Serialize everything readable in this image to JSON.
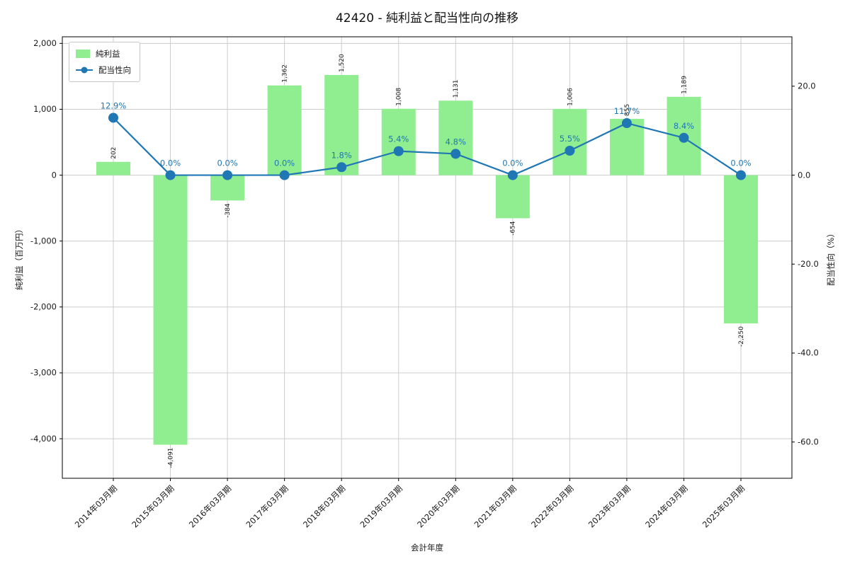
{
  "title": "42420 - 純利益と配当性向の推移",
  "chart_data": {
    "type": "bar+line",
    "title": "42420 - 純利益と配当性向の推移",
    "xlabel": "会計年度",
    "ylabel_left": "純利益（百万円）",
    "ylabel_right": "配当性向（%）",
    "categories": [
      "2014年03月期",
      "2015年03月期",
      "2016年03月期",
      "2017年03月期",
      "2018年03月期",
      "2019年03月期",
      "2020年03月期",
      "2021年03月期",
      "2022年03月期",
      "2023年03月期",
      "2024年03月期",
      "2025年03月期"
    ],
    "bar_series": {
      "name": "純利益",
      "axis": "left",
      "color": "#90ee90",
      "values": [
        202,
        -4091,
        -384,
        1362,
        1520,
        1008,
        1131,
        -654,
        1006,
        855,
        1189,
        -2250
      ],
      "labels": [
        "202",
        "-4,091",
        "-384",
        "1,362",
        "1,520",
        "1,008",
        "1,131",
        "-654",
        "1,006",
        "855",
        "1,189",
        "-2,250"
      ]
    },
    "line_series": {
      "name": "配当性向",
      "axis": "right",
      "color": "#1f77b4",
      "values": [
        12.9,
        0.0,
        0.0,
        0.0,
        1.8,
        5.4,
        4.8,
        0.0,
        5.5,
        11.7,
        8.4,
        0.0
      ],
      "labels": [
        "12.9%",
        "0.0%",
        "0.0%",
        "0.0%",
        "1.8%",
        "5.4%",
        "4.8%",
        "0.0%",
        "5.5%",
        "11.7%",
        "8.4%",
        "0.0%"
      ]
    },
    "y_left_ticks": [
      {
        "value": 2000,
        "label": "2,000"
      },
      {
        "value": 1000,
        "label": "1,000"
      },
      {
        "value": 0,
        "label": "0"
      },
      {
        "value": -1000,
        "label": "-1,000"
      },
      {
        "value": -2000,
        "label": "-2,000"
      },
      {
        "value": -3000,
        "label": "-3,000"
      },
      {
        "value": -4000,
        "label": "-4,000"
      }
    ],
    "y_right_ticks": [
      {
        "value": 20,
        "label": "20.0"
      },
      {
        "value": 0,
        "label": "0.0"
      },
      {
        "value": -20,
        "label": "-20.0"
      },
      {
        "value": -40,
        "label": "-40.0"
      },
      {
        "value": -60,
        "label": "-60.0"
      }
    ],
    "ylim_left": [
      -4600,
      2100
    ],
    "ylim_right": [
      -68.15,
      31.11
    ],
    "grid": true,
    "legend_position": "upper left",
    "colors": {
      "bar": "#90ee90",
      "line": "#1f77b4",
      "pct_label": "#1f77b4",
      "bar_label": "#1a1a1a",
      "grid": "#cccccc",
      "spine": "#000000",
      "tick_text": "#1a1a1a",
      "background": "#ffffff"
    }
  }
}
